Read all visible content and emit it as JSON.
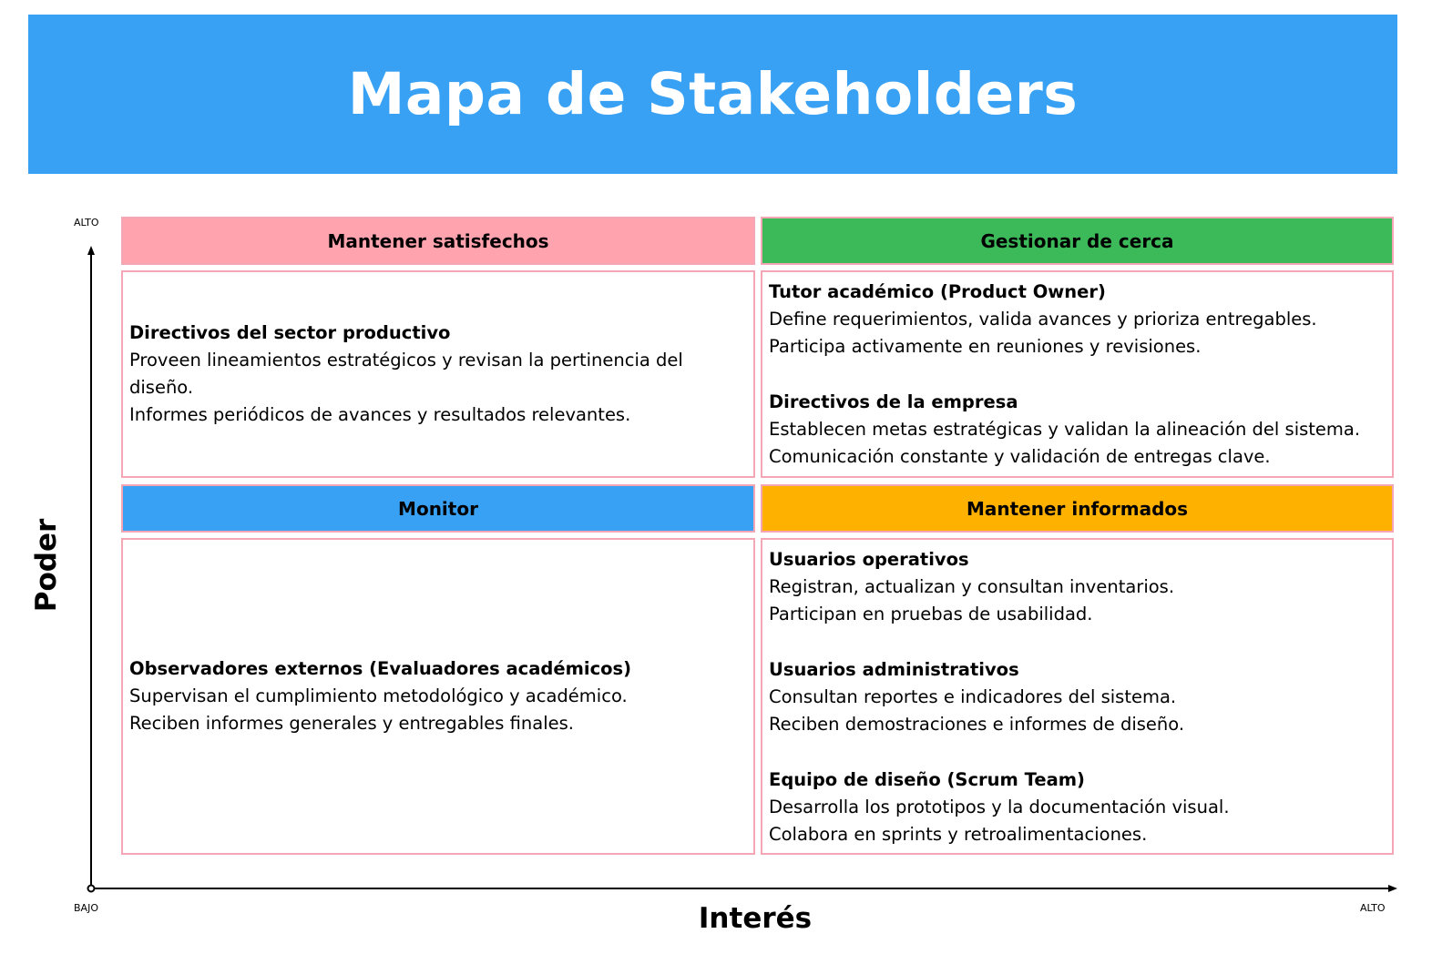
{
  "title": "Mapa de Stakeholders",
  "axes": {
    "y_title": "Poder",
    "x_title": "Interés",
    "y_high": "ALTO",
    "x_low": "BAJO",
    "x_high": "ALTO"
  },
  "colors": {
    "banner": "#38a1f3",
    "satisfied": "#ffa3af",
    "manage": "#3cba5a",
    "monitor": "#38a1f3",
    "informed": "#ffb100",
    "border": "#f4a6b5"
  },
  "quadrants": {
    "satisfied": {
      "label": "Mantener satisfechos",
      "groups": [
        {
          "title": "Directivos del sector productivo",
          "lines": [
            "Proveen lineamientos estratégicos y revisan la pertinencia del diseño.",
            "Informes periódicos de avances y resultados relevantes."
          ]
        }
      ]
    },
    "manage": {
      "label": "Gestionar de cerca",
      "groups": [
        {
          "title": "Tutor académico (Product Owner)",
          "lines": [
            "Define requerimientos, valida avances y prioriza entregables.",
            "Participa activamente en reuniones y revisiones."
          ]
        },
        {
          "title": "Directivos de la empresa",
          "lines": [
            "Establecen metas estratégicas y validan la alineación del sistema.",
            "Comunicación constante y validación de entregas clave."
          ]
        }
      ]
    },
    "monitor": {
      "label": "Monitor",
      "groups": [
        {
          "title": "Observadores externos (Evaluadores académicos)",
          "lines": [
            "Supervisan el cumplimiento metodológico y académico.",
            "Reciben informes generales y entregables finales."
          ]
        }
      ]
    },
    "informed": {
      "label": "Mantener informados",
      "groups": [
        {
          "title": "Usuarios operativos",
          "lines": [
            "Registran, actualizan y consultan inventarios.",
            "Participan en pruebas de usabilidad."
          ]
        },
        {
          "title": "Usuarios administrativos",
          "lines": [
            "Consultan reportes e indicadores del sistema.",
            "Reciben demostraciones e informes de diseño."
          ]
        },
        {
          "title": "Equipo de diseño (Scrum Team)",
          "lines": [
            "Desarrolla los prototipos y la documentación visual.",
            "Colabora en sprints y retroalimentaciones."
          ]
        }
      ]
    }
  }
}
